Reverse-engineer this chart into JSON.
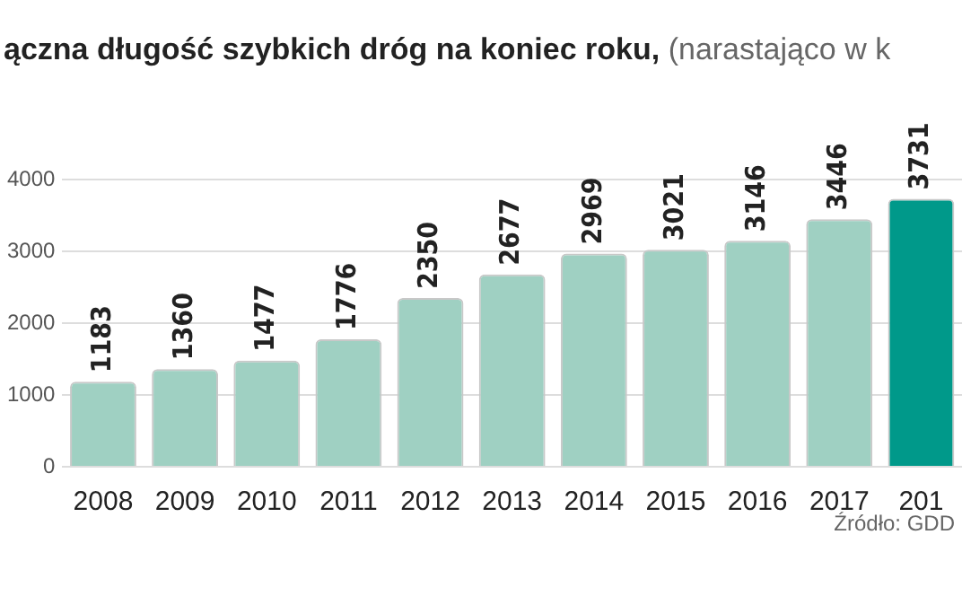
{
  "chart_data": {
    "type": "bar",
    "title": "ączna długość szybkich dróg na koniec roku,",
    "subtitle": "(narastająco w k",
    "categories": [
      "2008",
      "2009",
      "2010",
      "2011",
      "2012",
      "2013",
      "2014",
      "2015",
      "2016",
      "2017",
      "201"
    ],
    "values": [
      1183,
      1360,
      1477,
      1776,
      2350,
      2677,
      2969,
      3021,
      3146,
      3446,
      3731
    ],
    "colors": [
      "#9fd0c2",
      "#9fd0c2",
      "#9fd0c2",
      "#9fd0c2",
      "#9fd0c2",
      "#9fd0c2",
      "#9fd0c2",
      "#9fd0c2",
      "#9fd0c2",
      "#9fd0c2",
      "#00998a"
    ],
    "ylim": [
      0,
      4000
    ],
    "yticks": [
      0,
      1000,
      2000,
      3000,
      4000
    ],
    "grid": "y",
    "data_labels": true,
    "annotations": [
      "Źródło: GDD"
    ]
  }
}
